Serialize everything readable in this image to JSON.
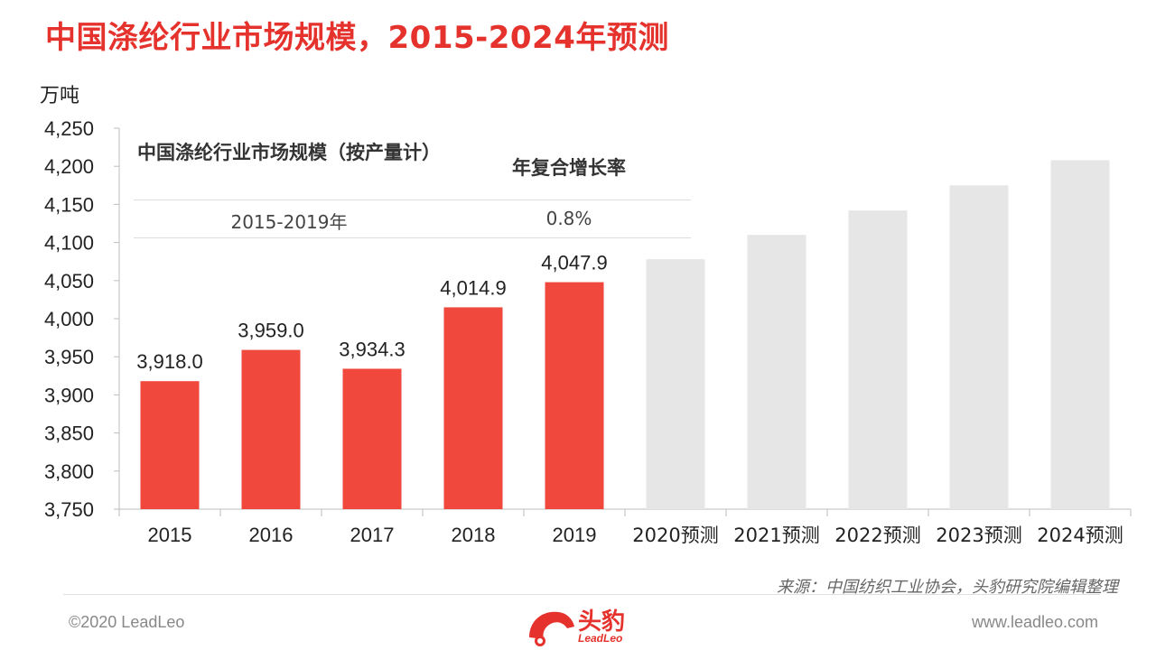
{
  "title": "中国涤纶行业市场规模，2015-2024年预测",
  "unit_label": "万吨",
  "cagr_table": {
    "header_left": "中国涤纶行业市场规模（按产量计）",
    "header_right": "年复合增长率",
    "period": "2015-2019年",
    "rate": "0.8%"
  },
  "source": "来源：中国纺织工业协会，头豹研究院编辑整理",
  "footer": {
    "copyright": "©2020 LeadLeo",
    "website": "www.leadleo.com",
    "logo_cn": "头豹",
    "logo_en": "LeadLeo"
  },
  "colors": {
    "actual": "#f0483c",
    "forecast": "#e6e6e6",
    "title": "#e5322d"
  },
  "chart_data": {
    "type": "bar",
    "title": "中国涤纶行业市场规模，2015-2024年预测",
    "ylabel": "万吨",
    "ylim": [
      3750,
      4250
    ],
    "yticks": [
      3750,
      3800,
      3850,
      3900,
      3950,
      4000,
      4050,
      4100,
      4150,
      4200,
      4250
    ],
    "ytick_labels": [
      "3,750",
      "3,800",
      "3,850",
      "3,900",
      "3,950",
      "4,000",
      "4,050",
      "4,100",
      "4,150",
      "4,200",
      "4,250"
    ],
    "categories": [
      "2015",
      "2016",
      "2017",
      "2018",
      "2019",
      "2020预测",
      "2021预测",
      "2022预测",
      "2023预测",
      "2024预测"
    ],
    "values": [
      3918.0,
      3959.0,
      3934.3,
      4014.9,
      4047.9,
      4078,
      4110,
      4142,
      4175,
      4208
    ],
    "forecast": [
      false,
      false,
      false,
      false,
      false,
      true,
      true,
      true,
      true,
      true
    ],
    "data_labels": [
      "3,918.0",
      "3,959.0",
      "3,934.3",
      "4,014.9",
      "4,047.9",
      null,
      null,
      null,
      null,
      null
    ],
    "grid": false,
    "legend": "none"
  }
}
